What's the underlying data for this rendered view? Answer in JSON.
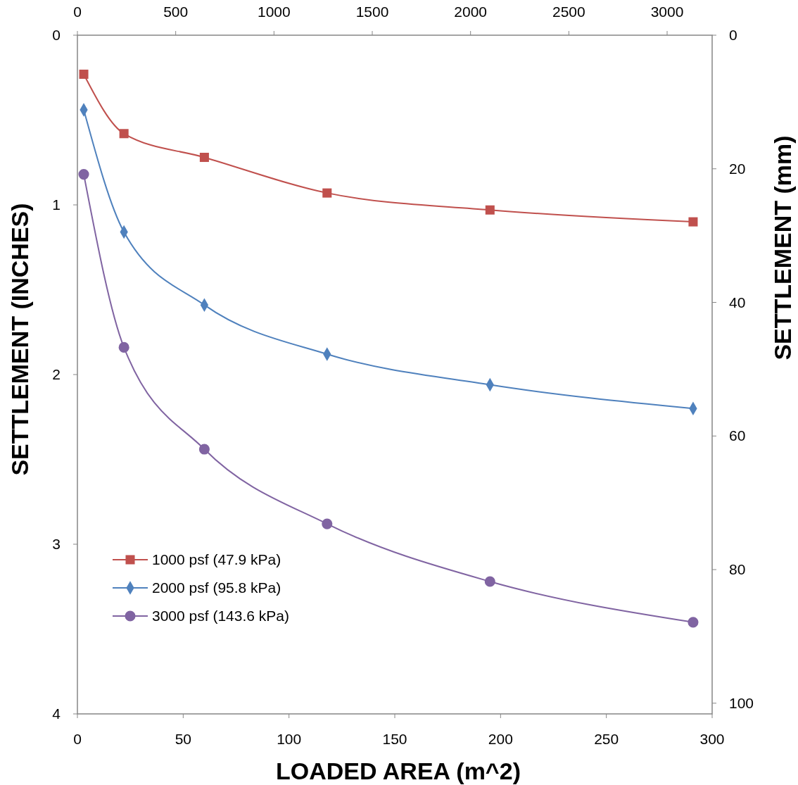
{
  "chart_data": {
    "type": "line",
    "xlabel": "LOADED AREA (m^2)",
    "ylabel": "SETTLEMENT (INCHES)",
    "y2label": "SETTLEMENT (mm)",
    "x": [
      3,
      22,
      60,
      118,
      195,
      291
    ],
    "xlim": [
      0,
      300
    ],
    "xticks": [
      0,
      50,
      100,
      150,
      200,
      250,
      300
    ],
    "x2lim": [
      0,
      3229
    ],
    "x2ticks": [
      0,
      500,
      1000,
      1500,
      2000,
      2500,
      3000
    ],
    "ylim": [
      4,
      0
    ],
    "yticks": [
      0,
      1,
      2,
      3,
      4
    ],
    "y2lim": [
      101.6,
      0
    ],
    "y2ticks": [
      0,
      20,
      40,
      60,
      80,
      100
    ],
    "grid": false,
    "legend": "bottom left",
    "series": [
      {
        "name": "1000 psf (47.9 kPa)",
        "color": "#c0504d",
        "marker": "square",
        "values": [
          0.23,
          0.58,
          0.72,
          0.93,
          1.03,
          1.1
        ]
      },
      {
        "name": "2000 psf (95.8 kPa)",
        "color": "#4f81bd",
        "marker": "diamond",
        "values": [
          0.44,
          1.16,
          1.59,
          1.88,
          2.06,
          2.2
        ]
      },
      {
        "name": "3000 psf (143.6 kPa)",
        "color": "#8064a2",
        "marker": "circle",
        "values": [
          0.82,
          1.84,
          2.44,
          2.88,
          3.22,
          3.46
        ]
      }
    ]
  }
}
